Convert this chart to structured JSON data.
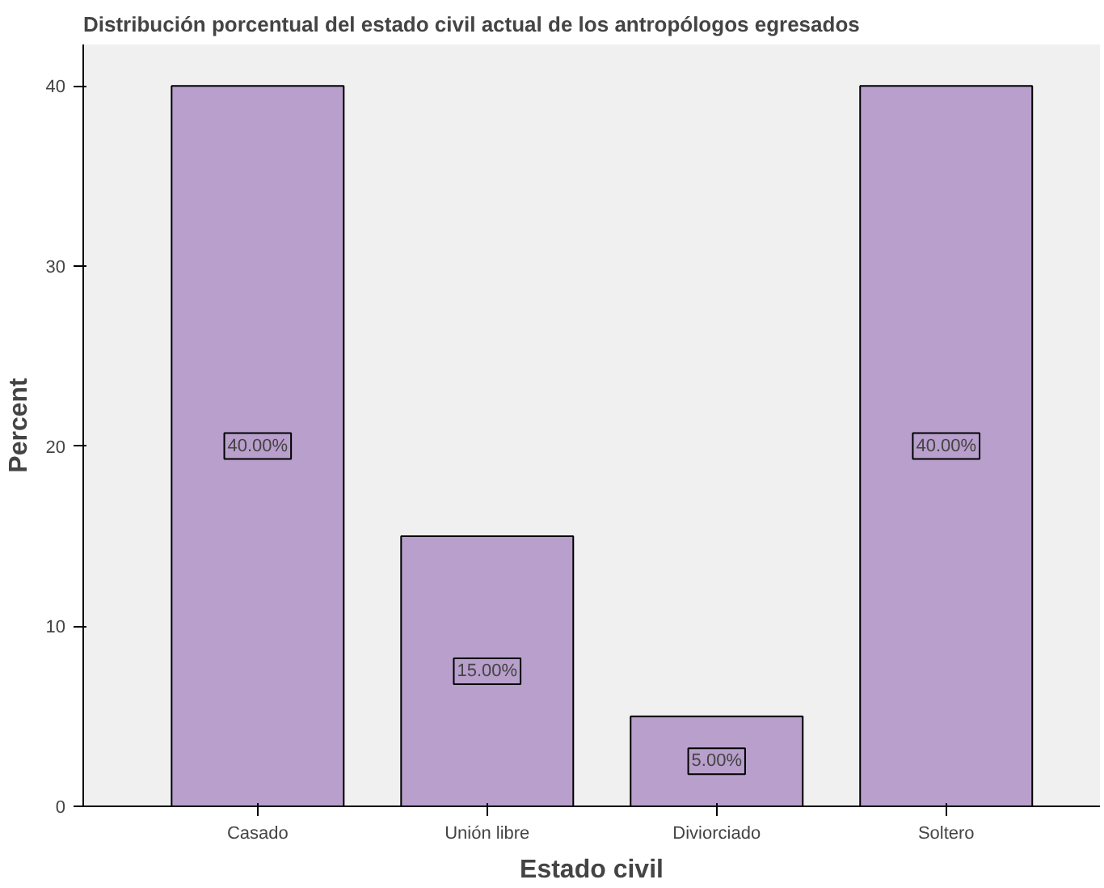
{
  "chart_data": {
    "type": "bar",
    "title": "Distribución porcentual del estado civil actual de los antropólogos egresados",
    "xlabel": "Estado civil",
    "ylabel": "Percent",
    "categories": [
      "Casado",
      "Unión libre",
      "Diviorciado",
      "Soltero"
    ],
    "values": [
      40,
      15,
      5,
      40
    ],
    "value_labels": [
      "40.00%",
      "15.00%",
      "5.00%",
      "40.00%"
    ],
    "color": "#b89fcc",
    "ylim": [
      0,
      42.3
    ],
    "yticks": [
      0,
      10,
      20,
      30,
      40
    ],
    "grid": false
  }
}
